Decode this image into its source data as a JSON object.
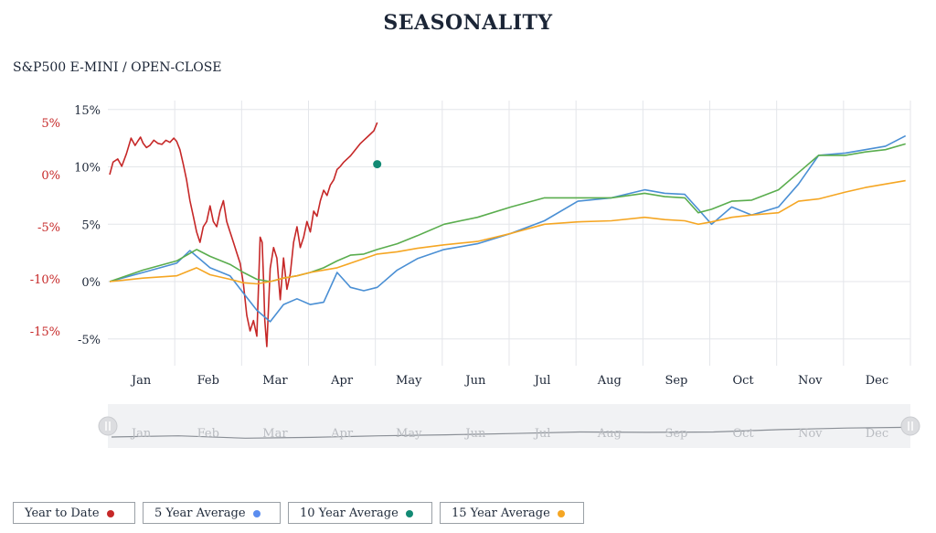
{
  "title": "SEASONALITY",
  "subtitle": "S&P500 E-MINI / OPEN-CLOSE",
  "legend": [
    {
      "label": "Year to Date",
      "color": "#c62828"
    },
    {
      "label": "5 Year Average",
      "color": "#5b8def"
    },
    {
      "label": "10 Year Average",
      "color": "#128a74"
    },
    {
      "label": "15 Year Average",
      "color": "#f5a623"
    }
  ],
  "chart_data": {
    "type": "line",
    "title": "SEASONALITY",
    "subtitle": "S&P500 E-MINI / OPEN-CLOSE",
    "x_unit": "month",
    "categories": [
      "Jan",
      "Feb",
      "Mar",
      "Apr",
      "May",
      "Jun",
      "Jul",
      "Aug",
      "Sep",
      "Oct",
      "Nov",
      "Dec"
    ],
    "navigator_labels": [
      "Jan",
      "Feb",
      "Mar",
      "Apr",
      "May",
      "Jun",
      "Jul",
      "Aug",
      "Sep",
      "Oct",
      "Nov",
      "Dec"
    ],
    "y_axes": [
      {
        "id": "left",
        "ticks": [
          "5%",
          "0%",
          "-5%",
          "-10%",
          "-15%"
        ],
        "tick_values": [
          5,
          0,
          -5,
          -10,
          -15
        ],
        "range": [
          -17,
          7
        ],
        "color": "#c62828"
      },
      {
        "id": "right",
        "ticks": [
          "15%",
          "10%",
          "5%",
          "0%",
          "-5%"
        ],
        "tick_values": [
          15,
          10,
          5,
          0,
          -5
        ],
        "range": [
          -7,
          15
        ],
        "color": "#1b2536"
      }
    ],
    "grid": true,
    "legend_position": "bottom-left",
    "series": [
      {
        "name": "Year to Date",
        "axis": "left",
        "color": "#c62828",
        "x": [
          0.0,
          0.05,
          0.12,
          0.18,
          0.25,
          0.32,
          0.38,
          0.42,
          0.46,
          0.5,
          0.55,
          0.6,
          0.66,
          0.72,
          0.78,
          0.84,
          0.9,
          0.96,
          1.0,
          1.05,
          1.1,
          1.15,
          1.2,
          1.25,
          1.3,
          1.35,
          1.4,
          1.45,
          1.5,
          1.55,
          1.6,
          1.65,
          1.7,
          1.75,
          1.8,
          1.85,
          1.9,
          1.95,
          2.0,
          2.05,
          2.1,
          2.15,
          2.2,
          2.25,
          2.28,
          2.3,
          2.32,
          2.35,
          2.4,
          2.45,
          2.5,
          2.55,
          2.6,
          2.65,
          2.7,
          2.75,
          2.8,
          2.85,
          2.9,
          2.95,
          3.0,
          3.05,
          3.1,
          3.15,
          3.2,
          3.25,
          3.3,
          3.35,
          3.4,
          3.45,
          3.5,
          3.55,
          3.6,
          3.65,
          3.7,
          3.75,
          3.8,
          3.85,
          3.9,
          3.95,
          4.0
        ],
        "values": [
          0.0,
          1.2,
          1.5,
          0.8,
          2.0,
          3.5,
          2.8,
          3.2,
          3.6,
          3.0,
          2.6,
          2.8,
          3.3,
          3.0,
          2.9,
          3.3,
          3.1,
          3.5,
          3.2,
          2.4,
          1.0,
          -0.5,
          -2.5,
          -4.0,
          -5.5,
          -6.5,
          -5.0,
          -4.5,
          -3.0,
          -4.5,
          -5.0,
          -3.5,
          -2.5,
          -4.5,
          -5.5,
          -6.5,
          -7.5,
          -8.5,
          -10.5,
          -13.5,
          -15.0,
          -14.0,
          -15.5,
          -6.0,
          -6.5,
          -10.0,
          -14.0,
          -16.5,
          -9.0,
          -7.0,
          -8.0,
          -12.0,
          -8.0,
          -11.0,
          -9.5,
          -6.5,
          -5.0,
          -7.0,
          -6.0,
          -4.5,
          -5.5,
          -3.5,
          -4.0,
          -2.5,
          -1.5,
          -2.0,
          -1.0,
          -0.5,
          0.5,
          0.8,
          1.2,
          1.5,
          1.8,
          2.2,
          2.6,
          3.0,
          3.3,
          3.6,
          3.9,
          4.2,
          5.0
        ]
      },
      {
        "name": "5 Year Average",
        "axis": "right",
        "color": "#4a8fd4",
        "x": [
          0,
          0.5,
          1,
          1.2,
          1.5,
          1.8,
          2,
          2.2,
          2.4,
          2.6,
          2.8,
          3,
          3.2,
          3.4,
          3.6,
          3.8,
          4,
          4.3,
          4.6,
          5,
          5.5,
          6,
          6.5,
          7,
          7.5,
          8,
          8.3,
          8.6,
          8.8,
          9,
          9.3,
          9.6,
          10,
          10.3,
          10.6,
          11,
          11.3,
          11.6,
          11.9
        ],
        "values": [
          0,
          0.8,
          1.6,
          2.7,
          1.2,
          0.5,
          -1.0,
          -2.5,
          -3.5,
          -2.0,
          -1.5,
          -2.0,
          -1.8,
          0.8,
          -0.5,
          -0.8,
          -0.5,
          1.0,
          2.0,
          2.8,
          3.3,
          4.2,
          5.3,
          7.0,
          7.3,
          8.0,
          7.7,
          7.6,
          6.3,
          5.0,
          6.5,
          5.8,
          6.5,
          8.5,
          11.0,
          11.2,
          11.5,
          11.8,
          12.7
        ]
      },
      {
        "name": "10 Year Average",
        "axis": "right",
        "color": "#5aad4e",
        "x": [
          0,
          0.5,
          1,
          1.3,
          1.5,
          1.8,
          2,
          2.2,
          2.4,
          2.6,
          2.8,
          3,
          3.2,
          3.4,
          3.6,
          3.8,
          4,
          4.3,
          4.6,
          5,
          5.5,
          6,
          6.5,
          7,
          7.5,
          8,
          8.3,
          8.6,
          8.8,
          9,
          9.3,
          9.6,
          10,
          10.3,
          10.6,
          11,
          11.3,
          11.6,
          11.9
        ],
        "values": [
          0,
          1.0,
          1.8,
          2.8,
          2.2,
          1.5,
          0.8,
          0.2,
          0.0,
          0.3,
          0.5,
          0.8,
          1.2,
          1.8,
          2.3,
          2.4,
          2.8,
          3.3,
          4.0,
          5.0,
          5.6,
          6.5,
          7.3,
          7.3,
          7.3,
          7.7,
          7.4,
          7.3,
          6.0,
          6.3,
          7.0,
          7.1,
          8.0,
          9.5,
          11.0,
          11.0,
          11.3,
          11.5,
          12.0
        ]
      },
      {
        "name": "15 Year Average",
        "axis": "right",
        "color": "#f5a623",
        "x": [
          0,
          0.5,
          1,
          1.3,
          1.5,
          1.8,
          2,
          2.2,
          2.4,
          2.6,
          2.8,
          3,
          3.2,
          3.4,
          3.6,
          3.8,
          4,
          4.3,
          4.6,
          5,
          5.5,
          6,
          6.5,
          7,
          7.5,
          8,
          8.3,
          8.6,
          8.8,
          9,
          9.3,
          9.6,
          10,
          10.3,
          10.6,
          11,
          11.3,
          11.6,
          11.9
        ],
        "values": [
          0,
          0.3,
          0.5,
          1.2,
          0.6,
          0.2,
          -0.1,
          -0.2,
          0.0,
          0.3,
          0.5,
          0.8,
          1.0,
          1.2,
          1.6,
          2.0,
          2.4,
          2.6,
          2.9,
          3.2,
          3.5,
          4.2,
          5.0,
          5.2,
          5.3,
          5.6,
          5.4,
          5.3,
          5.0,
          5.2,
          5.6,
          5.8,
          6.0,
          7.0,
          7.2,
          7.8,
          8.2,
          8.5,
          8.8
        ]
      }
    ],
    "marker": {
      "series": "10 Year Average",
      "x": 4.0,
      "axis": "left",
      "value": 1.0,
      "color": "#128a74"
    },
    "navigator": {
      "x": [
        0,
        1,
        2,
        3,
        4,
        5,
        6,
        7,
        8,
        9,
        10,
        11,
        11.9
      ],
      "values": [
        0,
        1.5,
        -1.5,
        -0.5,
        1.5,
        2.8,
        4.5,
        6.5,
        6.0,
        6.5,
        9.5,
        11.5,
        12.5
      ]
    }
  }
}
